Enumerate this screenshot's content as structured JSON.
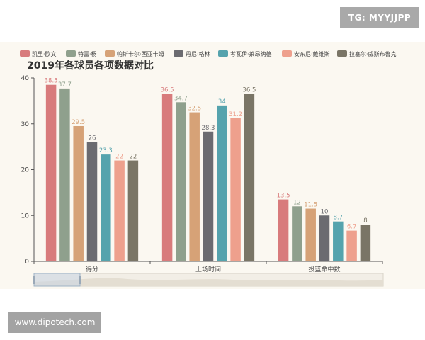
{
  "watermarks": {
    "top": "TG: MYYJJPP",
    "bottom": "www.dipotech.com"
  },
  "colors": {
    "background": "#fbf8f1",
    "axis": "#555555",
    "label": "#666666"
  },
  "chart_data": {
    "type": "bar",
    "title": "2019年各球员各项数据对比",
    "categories": [
      "得分",
      "上场时间",
      "投篮命中数"
    ],
    "ylim": [
      0,
      40
    ],
    "yticks": [
      0,
      10,
      20,
      30,
      40
    ],
    "grid": false,
    "legend_position": "top",
    "has_datazoom": true,
    "series": [
      {
        "name": "凯里·欧文",
        "color": "#d87b7c",
        "values": [
          38.5,
          36.5,
          13.5
        ]
      },
      {
        "name": "特雷·杨",
        "color": "#8fa08d",
        "values": [
          37.7,
          34.7,
          12
        ]
      },
      {
        "name": "帕斯卡尔·西亚卡姆",
        "color": "#d6a277",
        "values": [
          29.5,
          32.5,
          11.5
        ]
      },
      {
        "name": "丹尼·格林",
        "color": "#6b6b70",
        "values": [
          26,
          28.3,
          10
        ]
      },
      {
        "name": "考瓦伊·莱昂纳德",
        "color": "#55a3ad",
        "values": [
          23.3,
          34,
          8.7
        ]
      },
      {
        "name": "安东尼·戴维斯",
        "color": "#eea08d",
        "values": [
          22,
          31.2,
          6.7
        ]
      },
      {
        "name": "拉塞尔·威斯布鲁克",
        "color": "#7a7566",
        "values": [
          22,
          36.5,
          8
        ]
      }
    ]
  }
}
